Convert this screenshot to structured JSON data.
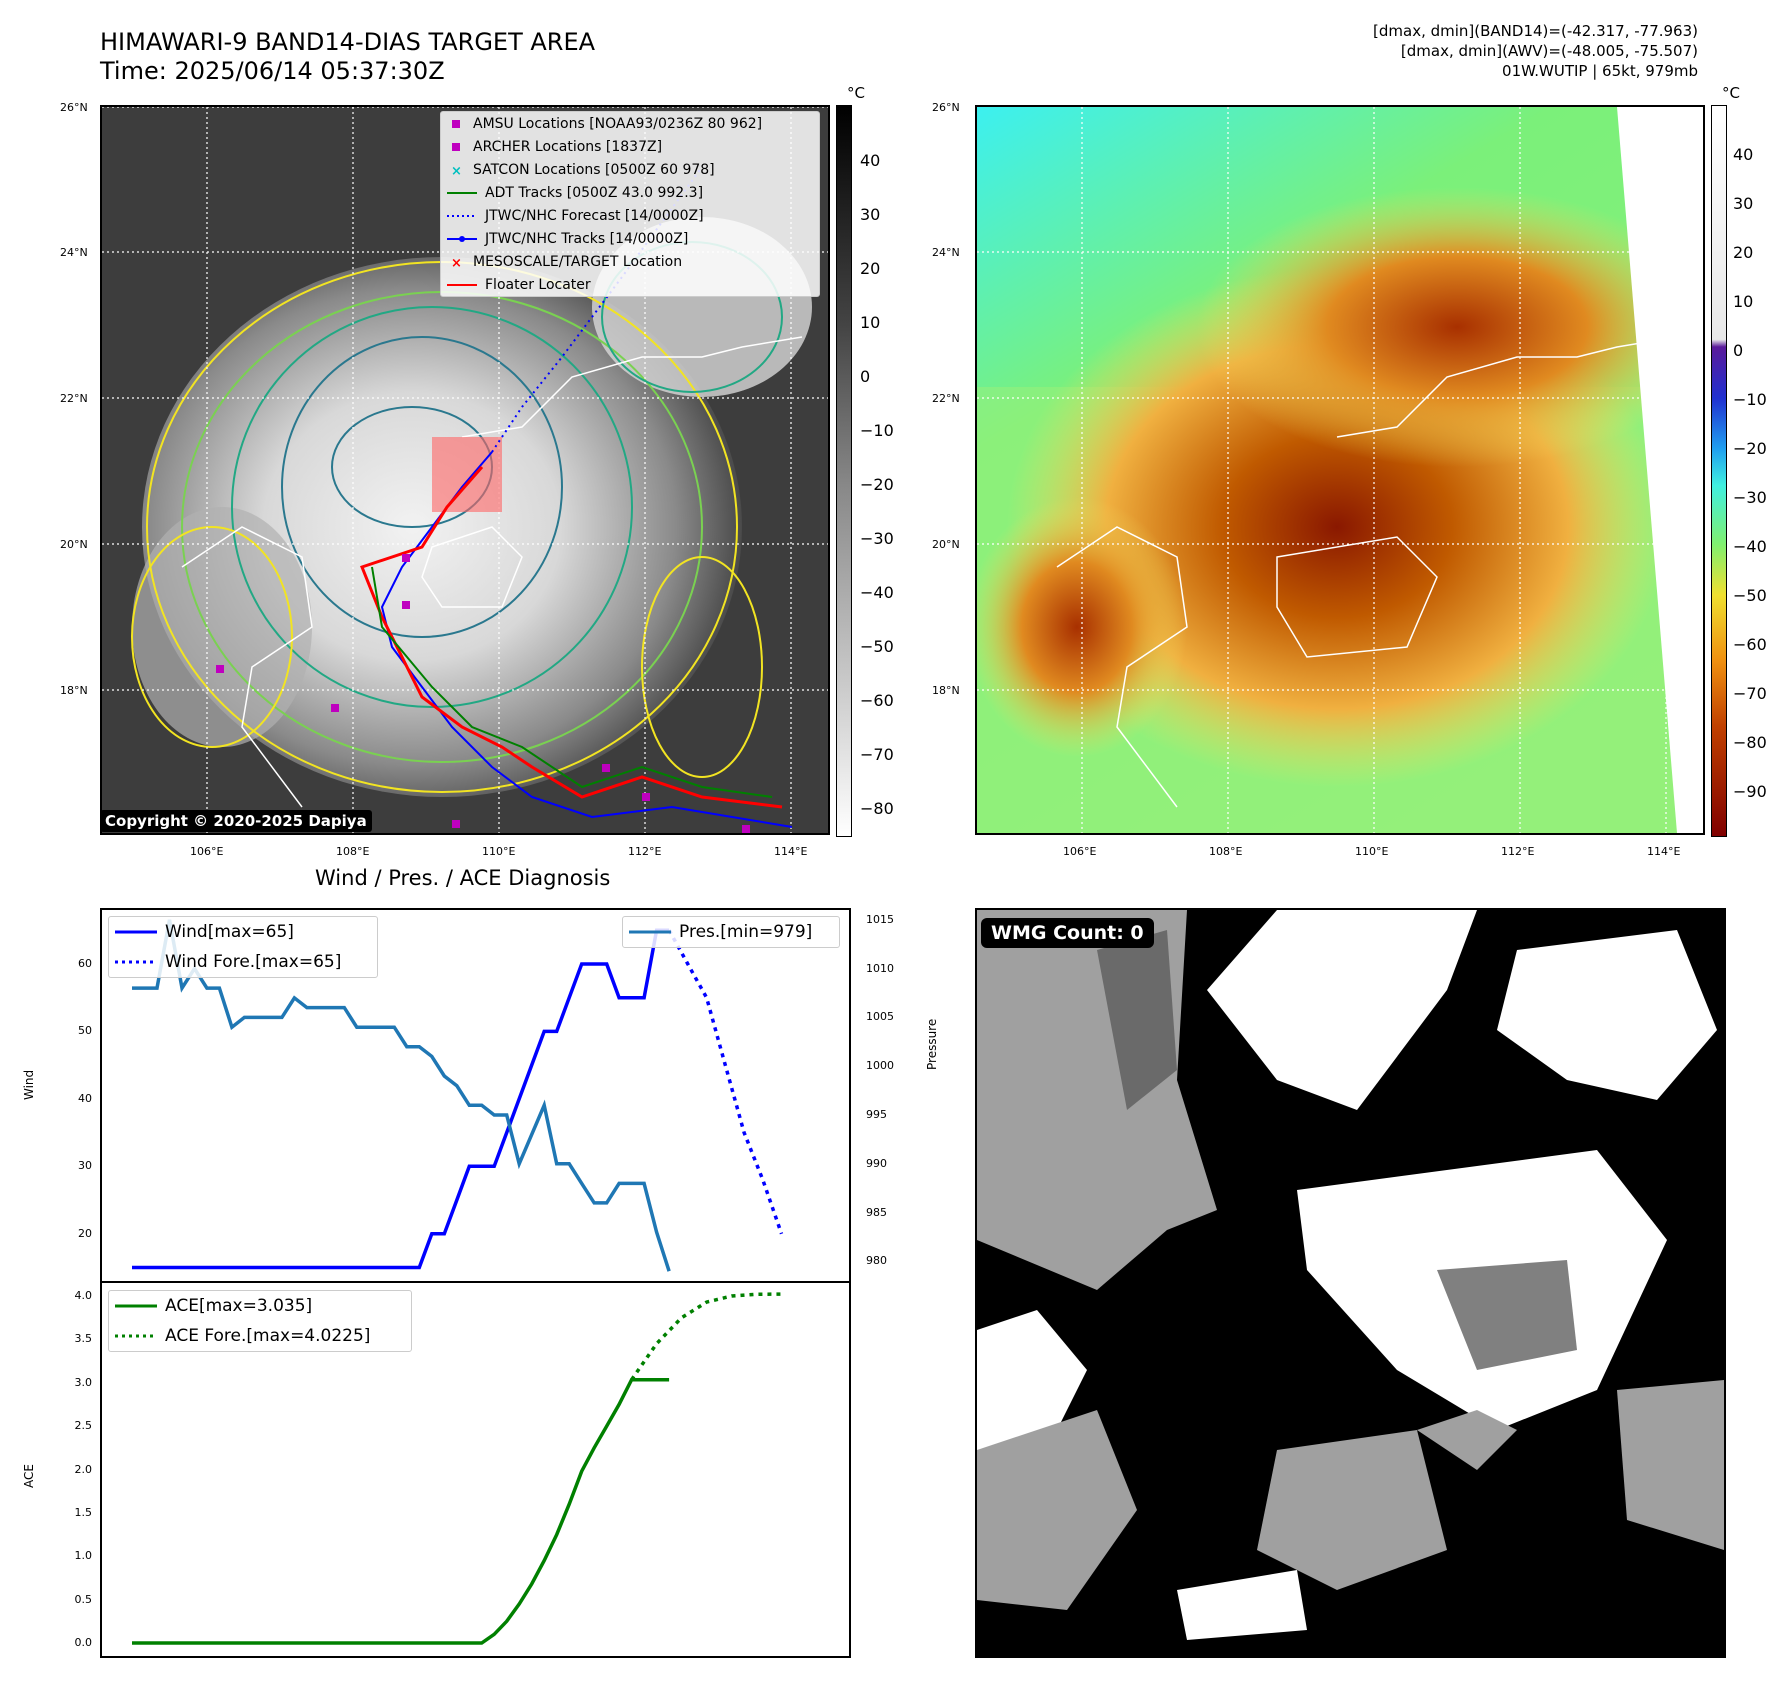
{
  "header": {
    "title_line1": "HIMAWARI-9 BAND14-DIAS TARGET AREA",
    "title_line2": "Time: 2025/06/14 05:37:30Z",
    "info_line1": "[dmax, dmin](BAND14)=(-42.317, -77.963)",
    "info_line2": "[dmax, dmin](AWV)=(-48.005, -75.507)",
    "info_line3": "01W.WUTIP | 65kt, 979mb"
  },
  "map": {
    "lat_ticks": [
      "26°N",
      "24°N",
      "22°N",
      "20°N",
      "18°N"
    ],
    "lon_ticks": [
      "106°E",
      "108°E",
      "110°E",
      "112°E",
      "114°E"
    ],
    "copyright": "Copyright © 2020-2025 Dapiya",
    "legend": [
      {
        "label": "AMSU Locations [NOAA93/0236Z 80 962]",
        "color": "#bf00bf",
        "kind": "square"
      },
      {
        "label": "ARCHER Locations [1837Z]",
        "color": "#bf00bf",
        "kind": "square"
      },
      {
        "label": "SATCON Locations [0500Z 60 978]",
        "color": "#00bfbf",
        "kind": "x"
      },
      {
        "label": "ADT Tracks [0500Z 43.0 992.3]",
        "color": "#008000",
        "kind": "line"
      },
      {
        "label": "JTWC/NHC Forecast [14/0000Z]",
        "color": "#0000ff",
        "kind": "dotted"
      },
      {
        "label": "JTWC/NHC Tracks [14/0000Z]",
        "color": "#0000ff",
        "kind": "dotline"
      },
      {
        "label": "MESOSCALE/TARGET Location",
        "color": "#ff0000",
        "kind": "x"
      },
      {
        "label": "Floater Locater",
        "color": "#ff0000",
        "kind": "line"
      }
    ]
  },
  "colorbar_gray": {
    "unit": "°C",
    "ticks": [
      "40",
      "30",
      "20",
      "10",
      "0",
      "−10",
      "−20",
      "−30",
      "−40",
      "−50",
      "−60",
      "−70",
      "−80"
    ]
  },
  "colorbar_color": {
    "unit": "°C",
    "ticks": [
      "40",
      "30",
      "20",
      "10",
      "0",
      "−10",
      "−20",
      "−30",
      "−40",
      "−50",
      "−60",
      "−70",
      "−80",
      "−90"
    ]
  },
  "diagnosis": {
    "title": "Wind / Pres. / ACE Diagnosis",
    "wind_ylabel": "Wind",
    "pres_ylabel": "Pressure",
    "ace_ylabel": "ACE",
    "legend_wind": "Wind[max=65]",
    "legend_wind_fore": "Wind Fore.[max=65]",
    "legend_pres": "Pres.[min=979]",
    "legend_ace": "ACE[max=3.035]",
    "legend_ace_fore": "ACE Fore.[max=4.0225]",
    "wind_ticks": [
      "60",
      "50",
      "40",
      "30",
      "20"
    ],
    "pres_ticks": [
      "1015",
      "1010",
      "1005",
      "1000",
      "995",
      "990",
      "985",
      "980"
    ],
    "ace_ticks": [
      "4.0",
      "3.5",
      "3.0",
      "2.5",
      "2.0",
      "1.5",
      "1.0",
      "0.5",
      "0.0"
    ]
  },
  "wmg": {
    "label": "WMG Count: 0"
  },
  "chart_data": [
    {
      "type": "line",
      "title": "Wind / Pres. / ACE Diagnosis",
      "ylabel": "Wind",
      "ylim": [
        13,
        68
      ],
      "series": [
        {
          "name": "Wind[max=65]",
          "color": "#0000ff",
          "x": [
            0,
            46,
            48,
            50,
            52,
            54,
            56,
            58,
            60,
            62,
            64,
            66,
            68,
            70,
            72,
            74,
            76,
            78,
            80,
            82,
            84,
            86
          ],
          "values": [
            15,
            15,
            20,
            20,
            25,
            30,
            30,
            30,
            35,
            40,
            45,
            50,
            50,
            55,
            60,
            60,
            60,
            55,
            55,
            55,
            65,
            65
          ]
        },
        {
          "name": "Wind Fore.[max=65]",
          "color": "#0000ff",
          "style": "dotted",
          "x": [
            86,
            89,
            92,
            95,
            98,
            101,
            104
          ],
          "values": [
            65,
            60,
            55,
            45,
            35,
            28,
            20
          ]
        }
      ]
    },
    {
      "type": "line",
      "ylabel": "Pressure",
      "ylim": [
        978,
        1016
      ],
      "series": [
        {
          "name": "Pres.[min=979]",
          "color": "#1f77b4",
          "x": [
            0,
            4,
            6,
            8,
            10,
            12,
            14,
            16,
            18,
            20,
            22,
            24,
            26,
            28,
            30,
            32,
            34,
            36,
            38,
            40,
            42,
            44,
            46,
            48,
            50,
            52,
            54,
            56,
            58,
            60,
            62,
            64,
            66,
            68,
            70,
            72,
            74,
            76,
            78,
            80,
            82,
            84,
            86
          ],
          "values": [
            1008,
            1008,
            1015,
            1008,
            1010,
            1008,
            1008,
            1004,
            1005,
            1005,
            1005,
            1005,
            1007,
            1006,
            1006,
            1006,
            1006,
            1004,
            1004,
            1004,
            1004,
            1002,
            1002,
            1001,
            999,
            998,
            996,
            996,
            995,
            995,
            990,
            993,
            996,
            990,
            990,
            988,
            986,
            986,
            988,
            988,
            988,
            983,
            979
          ]
        }
      ]
    },
    {
      "type": "line",
      "ylabel": "ACE",
      "ylim": [
        -0.15,
        4.15
      ],
      "series": [
        {
          "name": "ACE[max=3.035]",
          "color": "#008000",
          "x": [
            0,
            56,
            58,
            60,
            62,
            64,
            66,
            68,
            70,
            72,
            74,
            76,
            78,
            80,
            82,
            84,
            86
          ],
          "values": [
            0,
            0,
            0.1,
            0.25,
            0.45,
            0.68,
            0.95,
            1.25,
            1.6,
            1.98,
            2.25,
            2.5,
            2.75,
            3.035,
            3.035,
            3.035,
            3.035
          ]
        },
        {
          "name": "ACE Fore.[max=4.0225]",
          "color": "#008000",
          "style": "dotted",
          "x": [
            80,
            84,
            88,
            92,
            96,
            100,
            104
          ],
          "values": [
            3.035,
            3.45,
            3.75,
            3.93,
            4.0,
            4.02,
            4.0225
          ]
        }
      ]
    }
  ]
}
